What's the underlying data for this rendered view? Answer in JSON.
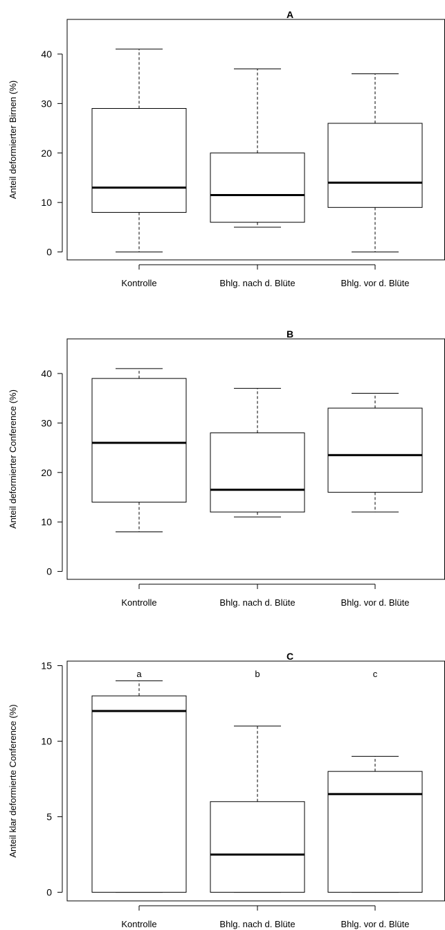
{
  "chart_data": [
    {
      "type": "box",
      "title": "A",
      "ylabel": "Anteil deformierter Birnen (%)",
      "xlabel": "",
      "categories": [
        "Kontrolle",
        "Bhlg. nach d. Blüte",
        "Bhlg. vor d. Blüte"
      ],
      "yticks": [
        0,
        10,
        20,
        30,
        40
      ],
      "ylim": [
        -1.6,
        47
      ],
      "boxes": [
        {
          "min": 0,
          "q1": 8,
          "median": 13,
          "q3": 29,
          "max": 41
        },
        {
          "min": 5,
          "q1": 6,
          "median": 11.5,
          "q3": 20,
          "max": 37
        },
        {
          "min": 0,
          "q1": 9,
          "median": 14,
          "q3": 26,
          "max": 36
        }
      ],
      "annotations": []
    },
    {
      "type": "box",
      "title": "B",
      "ylabel": "Anteil deformierter Conference (%)",
      "xlabel": "",
      "categories": [
        "Kontrolle",
        "Bhlg. nach d. Blüte",
        "Bhlg. vor d. Blüte"
      ],
      "yticks": [
        0,
        10,
        20,
        30,
        40
      ],
      "ylim": [
        -1.6,
        47
      ],
      "boxes": [
        {
          "min": 8,
          "q1": 14,
          "median": 26,
          "q3": 39,
          "max": 41
        },
        {
          "min": 11,
          "q1": 12,
          "median": 16.5,
          "q3": 28,
          "max": 37
        },
        {
          "min": 12,
          "q1": 16,
          "median": 23.5,
          "q3": 33,
          "max": 36
        }
      ],
      "annotations": []
    },
    {
      "type": "box",
      "title": "C",
      "ylabel": "Anteil klar deformierte Conference (%)",
      "xlabel": "",
      "categories": [
        "Kontrolle",
        "Bhlg. nach d. Blüte",
        "Bhlg. vor d. Blüte"
      ],
      "yticks": [
        0,
        5,
        10,
        15
      ],
      "ylim": [
        -0.57,
        15.3
      ],
      "boxes": [
        {
          "min": 0,
          "q1": 0,
          "median": 12,
          "q3": 13,
          "max": 14
        },
        {
          "min": 0,
          "q1": 0,
          "median": 2.5,
          "q3": 6,
          "max": 11
        },
        {
          "min": 0,
          "q1": 0,
          "median": 6.5,
          "q3": 8,
          "max": 9
        }
      ],
      "annotations": [
        "a",
        "b",
        "c"
      ]
    }
  ]
}
